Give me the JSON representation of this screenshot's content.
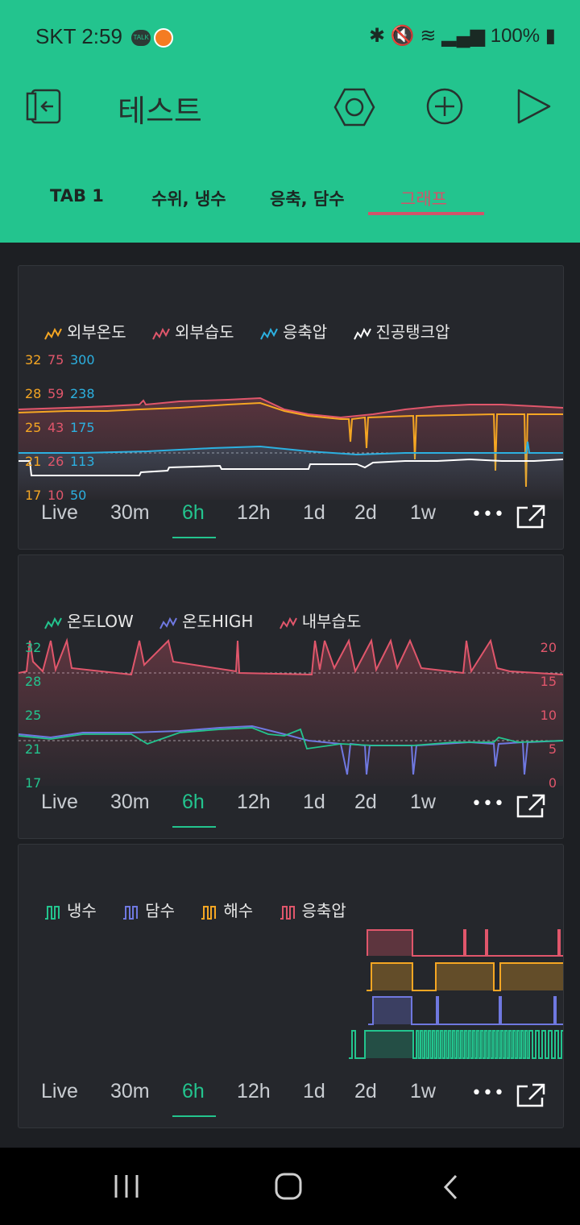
{
  "status_bar": {
    "carrier": "SKT",
    "time": "2:59",
    "battery": "100%",
    "talk": "TALK"
  },
  "app": {
    "title": "테스트"
  },
  "tabs": [
    "TAB 1",
    "수위, 냉수",
    "응축, 담수",
    "그래프"
  ],
  "active_tab": 3,
  "periods": [
    "Live",
    "30m",
    "6h",
    "12h",
    "1d",
    "2d",
    "1w"
  ],
  "active_period": "6h",
  "colors": {
    "accent": "#23c48e",
    "orange": "#f5a623",
    "red": "#e0566b",
    "blue": "#2cb0e0",
    "white": "#ffffff",
    "purple": "#6f78e0"
  },
  "chart1": {
    "legend": [
      "외부온도",
      "외부습도",
      "응축압",
      "진공탱크압"
    ],
    "axis_temp": [
      "32",
      "28",
      "25",
      "21",
      "17"
    ],
    "axis_hum": [
      "75",
      "59",
      "43",
      "26",
      "10"
    ],
    "axis_press": [
      "300",
      "238",
      "175",
      "113",
      "50"
    ]
  },
  "chart2": {
    "legend": [
      "온도LOW",
      "온도HIGH",
      "내부습도"
    ],
    "axis_left": [
      "32",
      "28",
      "25",
      "21",
      "17"
    ],
    "axis_right": [
      "20",
      "15",
      "10",
      "5",
      "0"
    ]
  },
  "chart3": {
    "legend": [
      "냉수",
      "담수",
      "해수",
      "응축압"
    ]
  },
  "icons": [
    "exit-icon",
    "settings-icon",
    "add-icon",
    "play-icon",
    "more-icon",
    "expand-icon",
    "nav-recent-icon",
    "nav-home-icon",
    "nav-back-icon"
  ]
}
